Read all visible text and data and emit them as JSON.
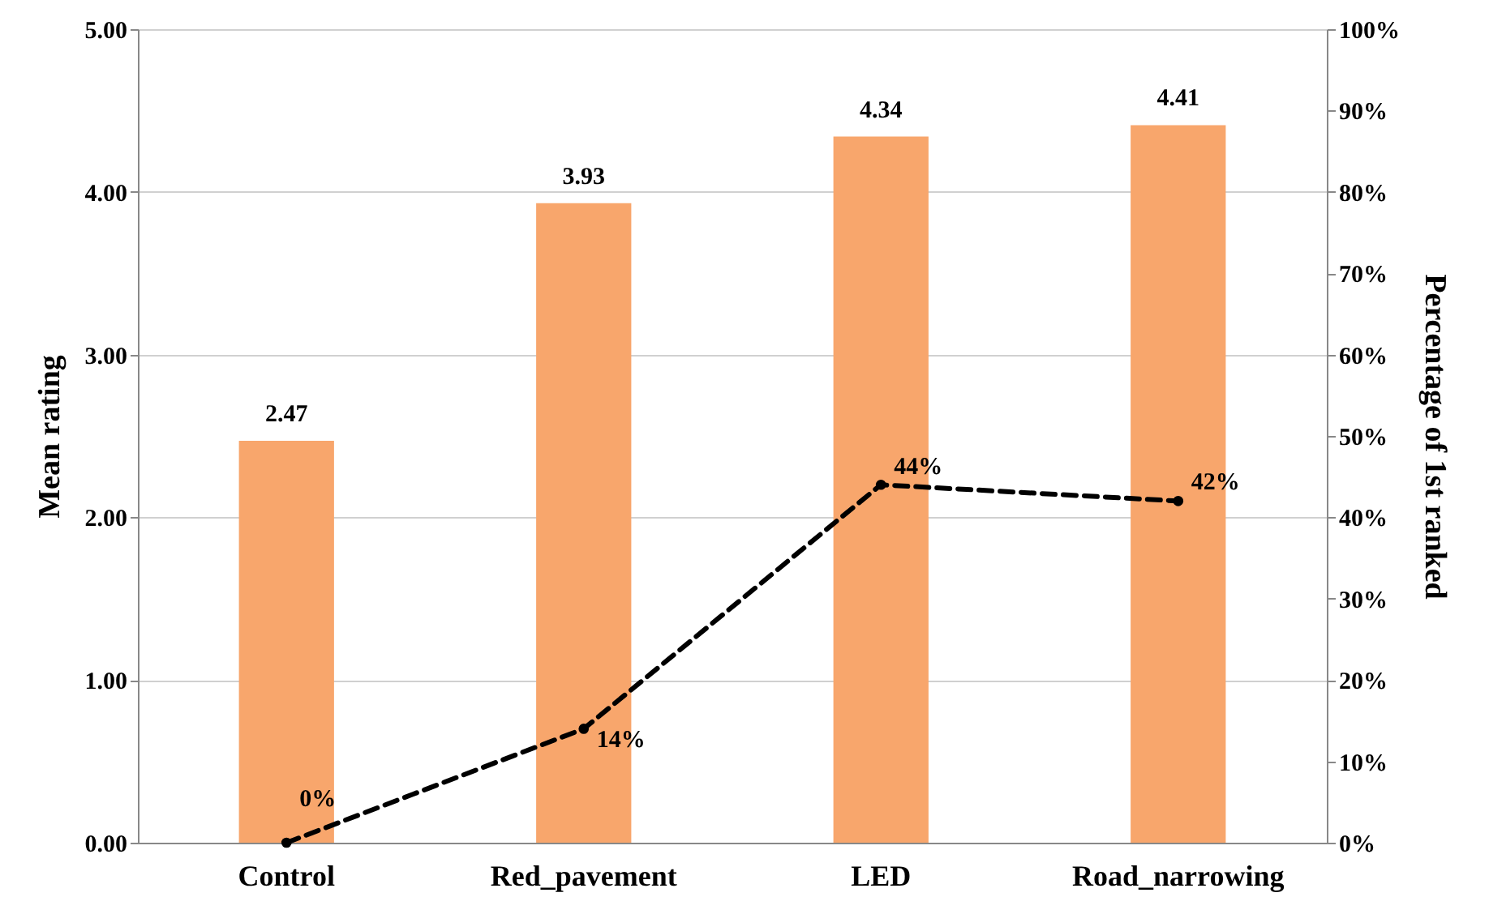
{
  "chart_data": {
    "type": "bar",
    "ylabel": "Mean rating",
    "y2label": "Percentage of 1st ranked",
    "categories": [
      "Control",
      "Red_pavement",
      "LED",
      "Road_narrowing"
    ],
    "series": [
      {
        "color": "#f8a66c",
        "values": [
          2.47,
          3.93,
          4.34,
          4.41
        ]
      },
      {
        "type": "line",
        "axis": "y2",
        "color": "#000000",
        "values": [
          0,
          14,
          44,
          42
        ],
        "value_labels": [
          "0%",
          "14%",
          "44%",
          "42%"
        ],
        "line_style": "dashed",
        "marker": "circle"
      }
    ],
    "data_labels": true,
    "ylim": [
      0,
      5
    ],
    "yticks": [
      {
        "value": 0,
        "label": "0.00"
      },
      {
        "value": 1,
        "label": "1.00"
      },
      {
        "value": 2,
        "label": "2.00"
      },
      {
        "value": 3,
        "label": "3.00"
      },
      {
        "value": 4,
        "label": "4.00"
      },
      {
        "value": 5,
        "label": "5.00"
      }
    ],
    "y2lim": [
      0,
      100
    ],
    "y2ticks": [
      {
        "value": 0,
        "label": "0%"
      },
      {
        "value": 10,
        "label": "10%"
      },
      {
        "value": 20,
        "label": "20%"
      },
      {
        "value": 30,
        "label": "30%"
      },
      {
        "value": 40,
        "label": "40%"
      },
      {
        "value": 50,
        "label": "50%"
      },
      {
        "value": 60,
        "label": "60%"
      },
      {
        "value": 70,
        "label": "70%"
      },
      {
        "value": 80,
        "label": "80%"
      },
      {
        "value": 90,
        "label": "90%"
      },
      {
        "value": 100,
        "label": "100%"
      }
    ],
    "grid": "y"
  }
}
